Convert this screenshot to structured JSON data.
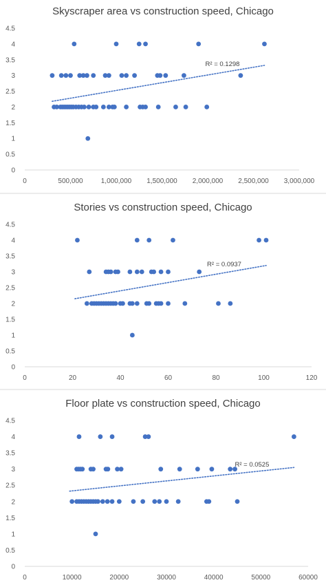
{
  "chart_data": [
    {
      "type": "scatter",
      "title": "Skyscraper area vs construction speed, Chicago",
      "xlim": [
        0,
        3000000
      ],
      "ylim": [
        0,
        4.5
      ],
      "xticks": [
        0,
        500000,
        1000000,
        1500000,
        2000000,
        2500000,
        3000000
      ],
      "xtick_labels": [
        "0",
        "500,000",
        "1,000,000",
        "1,500,000",
        "2,000,000",
        "2,500,000",
        "3,000,000"
      ],
      "yticks": [
        0,
        0.5,
        1,
        1.5,
        2,
        2.5,
        3,
        3.5,
        4,
        4.5
      ],
      "ytick_labels": [
        "0",
        "0.5",
        "1",
        "1.5",
        "2",
        "2.5",
        "3",
        "3.5",
        "4",
        "4.5"
      ],
      "grid": false,
      "trendline": {
        "type": "linear",
        "style": "dotted",
        "x": [
          300000,
          2620000
        ],
        "y": [
          2.18,
          3.32
        ],
        "label": "R² = 0.1298"
      },
      "color": "#4472c4",
      "points": [
        [
          540000,
          4
        ],
        [
          1000000,
          4
        ],
        [
          1250000,
          4
        ],
        [
          1320000,
          4
        ],
        [
          1900000,
          4
        ],
        [
          2620000,
          4
        ],
        [
          300000,
          3
        ],
        [
          400000,
          3
        ],
        [
          450000,
          3
        ],
        [
          500000,
          3
        ],
        [
          600000,
          3
        ],
        [
          640000,
          3
        ],
        [
          680000,
          3
        ],
        [
          750000,
          3
        ],
        [
          880000,
          3
        ],
        [
          920000,
          3
        ],
        [
          1060000,
          3
        ],
        [
          1110000,
          3
        ],
        [
          1200000,
          3
        ],
        [
          1450000,
          3
        ],
        [
          1480000,
          3
        ],
        [
          1540000,
          3
        ],
        [
          1740000,
          3
        ],
        [
          2360000,
          3
        ],
        [
          320000,
          2
        ],
        [
          350000,
          2
        ],
        [
          390000,
          2
        ],
        [
          410000,
          2
        ],
        [
          430000,
          2
        ],
        [
          450000,
          2
        ],
        [
          470000,
          2
        ],
        [
          490000,
          2
        ],
        [
          510000,
          2
        ],
        [
          530000,
          2
        ],
        [
          560000,
          2
        ],
        [
          590000,
          2
        ],
        [
          620000,
          2
        ],
        [
          650000,
          2
        ],
        [
          700000,
          2
        ],
        [
          750000,
          2
        ],
        [
          780000,
          2
        ],
        [
          860000,
          2
        ],
        [
          920000,
          2
        ],
        [
          960000,
          2
        ],
        [
          980000,
          2
        ],
        [
          1110000,
          2
        ],
        [
          1260000,
          2
        ],
        [
          1290000,
          2
        ],
        [
          1320000,
          2
        ],
        [
          1460000,
          2
        ],
        [
          1650000,
          2
        ],
        [
          1760000,
          2
        ],
        [
          1990000,
          2
        ],
        [
          690000,
          1
        ]
      ]
    },
    {
      "type": "scatter",
      "title": "Stories vs construction speed, Chicago",
      "xlim": [
        0,
        120
      ],
      "ylim": [
        0,
        4.5
      ],
      "xticks": [
        0,
        20,
        40,
        60,
        80,
        100,
        120
      ],
      "xtick_labels": [
        "0",
        "20",
        "40",
        "60",
        "80",
        "100",
        "120"
      ],
      "yticks": [
        0,
        0.5,
        1,
        1.5,
        2,
        2.5,
        3,
        3.5,
        4,
        4.5
      ],
      "ytick_labels": [
        "0",
        "0.5",
        "1",
        "1.5",
        "2",
        "2.5",
        "3",
        "3.5",
        "4",
        "4.5"
      ],
      "grid": false,
      "trendline": {
        "type": "linear",
        "style": "dotted",
        "x": [
          21,
          101
        ],
        "y": [
          2.15,
          3.2
        ],
        "label": "R² = 0.0937"
      },
      "color": "#4472c4",
      "points": [
        [
          22,
          4
        ],
        [
          47,
          4
        ],
        [
          52,
          4
        ],
        [
          62,
          4
        ],
        [
          98,
          4
        ],
        [
          101,
          4
        ],
        [
          27,
          3
        ],
        [
          34,
          3
        ],
        [
          35,
          3
        ],
        [
          36,
          3
        ],
        [
          38,
          3
        ],
        [
          39,
          3
        ],
        [
          44,
          3
        ],
        [
          47,
          3
        ],
        [
          49,
          3
        ],
        [
          53,
          3
        ],
        [
          54,
          3
        ],
        [
          57,
          3
        ],
        [
          60,
          3
        ],
        [
          73,
          3
        ],
        [
          26,
          2
        ],
        [
          28,
          2
        ],
        [
          29,
          2
        ],
        [
          30,
          2
        ],
        [
          31,
          2
        ],
        [
          32,
          2
        ],
        [
          33,
          2
        ],
        [
          34,
          2
        ],
        [
          35,
          2
        ],
        [
          36,
          2
        ],
        [
          37,
          2
        ],
        [
          38,
          2
        ],
        [
          40,
          2
        ],
        [
          41,
          2
        ],
        [
          44,
          2
        ],
        [
          45,
          2
        ],
        [
          47,
          2
        ],
        [
          51,
          2
        ],
        [
          52,
          2
        ],
        [
          55,
          2
        ],
        [
          56,
          2
        ],
        [
          57,
          2
        ],
        [
          60,
          2
        ],
        [
          67,
          2
        ],
        [
          81,
          2
        ],
        [
          86,
          2
        ],
        [
          45,
          1
        ]
      ]
    },
    {
      "type": "scatter",
      "title": "Floor plate vs construction speed, Chicago",
      "xlim": [
        0,
        60000
      ],
      "ylim": [
        0,
        4.5
      ],
      "xticks": [
        0,
        10000,
        20000,
        30000,
        40000,
        50000,
        60000
      ],
      "xtick_labels": [
        "0",
        "10000",
        "20000",
        "30000",
        "40000",
        "50000",
        "60000"
      ],
      "yticks": [
        0,
        0.5,
        1,
        1.5,
        2,
        2.5,
        3,
        3.5,
        4,
        4.5
      ],
      "ytick_labels": [
        "0",
        "0.5",
        "1",
        "1.5",
        "2",
        "2.5",
        "3",
        "3.5",
        "4",
        "4.5"
      ],
      "grid": false,
      "trendline": {
        "type": "linear",
        "style": "dotted",
        "x": [
          9500,
          57000
        ],
        "y": [
          2.32,
          3.05
        ],
        "label": "R² = 0.0525"
      },
      "color": "#4472c4",
      "points": [
        [
          11500,
          4
        ],
        [
          16000,
          4
        ],
        [
          18500,
          4
        ],
        [
          25500,
          4
        ],
        [
          26200,
          4
        ],
        [
          57000,
          4
        ],
        [
          11000,
          3
        ],
        [
          11400,
          3
        ],
        [
          11800,
          3
        ],
        [
          12200,
          3
        ],
        [
          14000,
          3
        ],
        [
          14500,
          3
        ],
        [
          17200,
          3
        ],
        [
          17600,
          3
        ],
        [
          19600,
          3
        ],
        [
          20400,
          3
        ],
        [
          28800,
          3
        ],
        [
          32800,
          3
        ],
        [
          36600,
          3
        ],
        [
          39600,
          3
        ],
        [
          43500,
          3
        ],
        [
          44500,
          3
        ],
        [
          10000,
          2
        ],
        [
          11000,
          2
        ],
        [
          11500,
          2
        ],
        [
          12000,
          2
        ],
        [
          12500,
          2
        ],
        [
          13000,
          2
        ],
        [
          13500,
          2
        ],
        [
          14000,
          2
        ],
        [
          14500,
          2
        ],
        [
          15000,
          2
        ],
        [
          15500,
          2
        ],
        [
          16500,
          2
        ],
        [
          17500,
          2
        ],
        [
          18500,
          2
        ],
        [
          20000,
          2
        ],
        [
          23000,
          2
        ],
        [
          25000,
          2
        ],
        [
          27500,
          2
        ],
        [
          28500,
          2
        ],
        [
          30000,
          2
        ],
        [
          32500,
          2
        ],
        [
          38500,
          2
        ],
        [
          39000,
          2
        ],
        [
          45000,
          2
        ],
        [
          15000,
          1
        ]
      ]
    }
  ]
}
